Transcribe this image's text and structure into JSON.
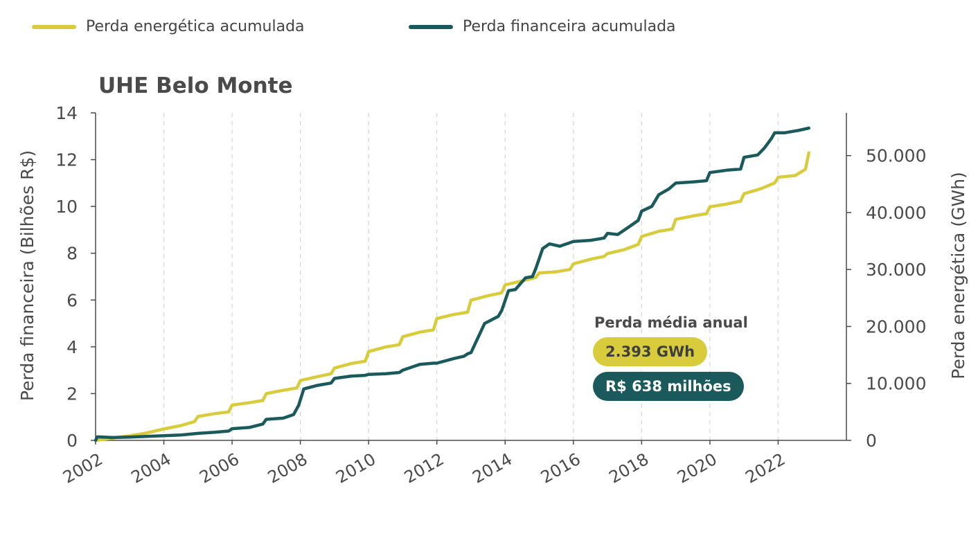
{
  "legend": [
    {
      "label": "Perda energética acumulada",
      "color": "#d8cc3c"
    },
    {
      "label": "Perda financeira acumulada",
      "color": "#1b5a5c"
    }
  ],
  "annotation": {
    "title": "Perda média anual",
    "energy": "2.393 GWh",
    "money": "R$ 638 milhões"
  },
  "chart_data": {
    "type": "line",
    "title": "UHE Belo Monte",
    "xlabel": "",
    "ylabel_left": "Perda financeira (Bilhões R$)",
    "ylabel_right": "Perda energética (GWh)",
    "xlim": [
      2002,
      2024
    ],
    "ylim_left": [
      0,
      14
    ],
    "ylim_right": [
      0,
      57500
    ],
    "x_ticks": [
      "2002",
      "2004",
      "2006",
      "2008",
      "2010",
      "2012",
      "2014",
      "2016",
      "2018",
      "2020",
      "2022"
    ],
    "y_ticks_left": [
      "0",
      "2",
      "4",
      "6",
      "8",
      "10",
      "12",
      "14"
    ],
    "y_ticks_right": [
      "0",
      "10.000",
      "20.000",
      "30.000",
      "40.000",
      "50.000"
    ],
    "grid": "vertical dashed",
    "legend_position": "top-left",
    "series": [
      {
        "name": "Perda energética acumulada",
        "axis": "right",
        "color": "#d8cc3c",
        "x": [
          2002.0,
          2002.5,
          2003.0,
          2003.5,
          2004.0,
          2004.5,
          2004.9,
          2005.0,
          2005.5,
          2005.9,
          2006.0,
          2006.5,
          2006.9,
          2007.0,
          2007.5,
          2007.9,
          2008.0,
          2008.5,
          2008.9,
          2009.0,
          2009.5,
          2009.9,
          2010.0,
          2010.5,
          2010.9,
          2011.0,
          2011.5,
          2011.9,
          2012.0,
          2012.5,
          2012.9,
          2013.0,
          2013.5,
          2013.9,
          2014.0,
          2014.5,
          2014.9,
          2015.0,
          2015.5,
          2015.9,
          2016.0,
          2016.5,
          2016.9,
          2017.0,
          2017.5,
          2017.9,
          2018.0,
          2018.5,
          2018.9,
          2019.0,
          2019.5,
          2019.9,
          2020.0,
          2020.5,
          2020.9,
          2021.0,
          2021.5,
          2021.9,
          2022.0,
          2022.5,
          2022.8,
          2022.9
        ],
        "y": [
          0,
          400,
          800,
          1300,
          2000,
          2600,
          3300,
          4200,
          4700,
          5000,
          6200,
          6600,
          7000,
          8200,
          8800,
          9200,
          10500,
          11200,
          11700,
          12700,
          13500,
          13900,
          15600,
          16400,
          16800,
          18200,
          19000,
          19400,
          21400,
          22100,
          22500,
          24600,
          25400,
          25900,
          27300,
          28000,
          28600,
          29400,
          29600,
          30000,
          31000,
          31800,
          32300,
          32800,
          33500,
          34400,
          35800,
          36700,
          37100,
          38800,
          39400,
          39800,
          41000,
          41500,
          42000,
          43300,
          44200,
          45200,
          46200,
          46500,
          47600,
          50500
        ]
      },
      {
        "name": "Perda financeira acumulada",
        "axis": "left",
        "color": "#1b5a5c",
        "x": [
          2002.0,
          2002.05,
          2002.5,
          2003.0,
          2003.5,
          2004.0,
          2004.5,
          2005.0,
          2005.5,
          2005.9,
          2006.0,
          2006.5,
          2006.9,
          2007.0,
          2007.5,
          2007.8,
          2007.95,
          2008.1,
          2008.5,
          2008.9,
          2009.0,
          2009.5,
          2009.9,
          2010.0,
          2010.5,
          2010.9,
          2011.0,
          2011.5,
          2011.9,
          2012.0,
          2012.5,
          2012.8,
          2012.9,
          2013.0,
          2013.4,
          2013.6,
          2013.8,
          2013.9,
          2014.1,
          2014.3,
          2014.6,
          2014.8,
          2014.9,
          2015.1,
          2015.3,
          2015.6,
          2015.9,
          2016.0,
          2016.5,
          2016.9,
          2017.0,
          2017.3,
          2017.6,
          2017.9,
          2018.0,
          2018.3,
          2018.5,
          2018.8,
          2019.0,
          2019.5,
          2019.9,
          2020.0,
          2020.5,
          2020.9,
          2021.0,
          2021.4,
          2021.6,
          2021.8,
          2021.9,
          2022.2,
          2022.6,
          2022.9
        ],
        "y": [
          0,
          0.15,
          0.12,
          0.14,
          0.17,
          0.2,
          0.23,
          0.3,
          0.35,
          0.4,
          0.5,
          0.55,
          0.7,
          0.9,
          0.95,
          1.1,
          1.5,
          2.2,
          2.35,
          2.45,
          2.65,
          2.75,
          2.78,
          2.82,
          2.85,
          2.9,
          3.0,
          3.25,
          3.3,
          3.3,
          3.5,
          3.6,
          3.7,
          3.75,
          5.0,
          5.15,
          5.3,
          5.55,
          6.4,
          6.45,
          6.95,
          7.0,
          7.35,
          8.2,
          8.4,
          8.3,
          8.45,
          8.5,
          8.55,
          8.65,
          8.85,
          8.8,
          9.1,
          9.4,
          9.8,
          10.0,
          10.5,
          10.75,
          11.0,
          11.05,
          11.1,
          11.45,
          11.55,
          11.6,
          12.1,
          12.2,
          12.5,
          12.9,
          13.15,
          13.15,
          13.25,
          13.35
        ]
      }
    ]
  }
}
